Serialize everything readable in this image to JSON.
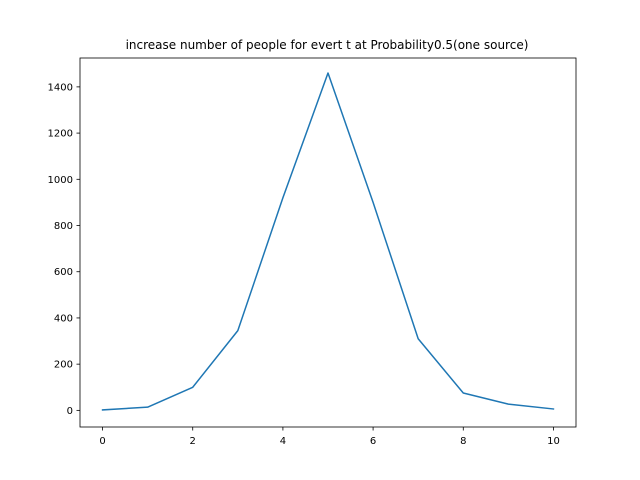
{
  "chart_data": {
    "type": "line",
    "title": "increase number of people for evert t  at Probability0.5(one  source)",
    "xlabel": "",
    "ylabel": "",
    "x": [
      0,
      1,
      2,
      3,
      4,
      5,
      6,
      7,
      8,
      9,
      10
    ],
    "series": [
      {
        "values": [
          2,
          14,
          100,
          345,
          920,
          1460,
          900,
          310,
          75,
          27,
          6
        ],
        "color": "#1f77b4"
      }
    ],
    "xlim": [
      -0.5,
      10.5
    ],
    "ylim": [
      -72,
      1525
    ],
    "xticks": [
      0,
      2,
      4,
      6,
      8,
      10
    ],
    "yticks": [
      0,
      200,
      400,
      600,
      800,
      1000,
      1200,
      1400
    ],
    "grid": false,
    "legend": "none"
  }
}
